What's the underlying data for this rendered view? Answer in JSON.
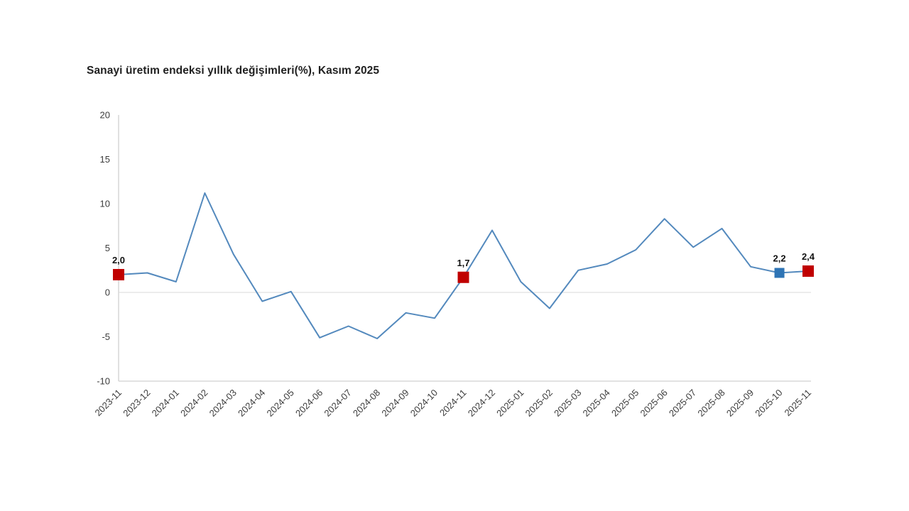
{
  "chart_data": {
    "type": "line",
    "title": "Sanayi üretim endeksi yıllık değişimleri(%), Kasım 2025",
    "x": [
      "2023-11",
      "2023-12",
      "2024-01",
      "2024-02",
      "2024-03",
      "2024-04",
      "2024-05",
      "2024-06",
      "2024-07",
      "2024-08",
      "2024-09",
      "2024-10",
      "2024-11",
      "2024-12",
      "2025-01",
      "2025-02",
      "2025-03",
      "2025-04",
      "2025-05",
      "2025-06",
      "2025-07",
      "2025-08",
      "2025-09",
      "2025-10",
      "2025-11"
    ],
    "values": [
      2.0,
      2.2,
      1.2,
      11.2,
      4.3,
      -1.0,
      0.1,
      -5.1,
      -3.8,
      -5.2,
      -2.3,
      -2.9,
      1.7,
      7.0,
      1.2,
      -1.8,
      2.5,
      3.2,
      4.8,
      8.3,
      5.1,
      7.2,
      2.9,
      2.2,
      2.4
    ],
    "highlighted_points": [
      {
        "index": 0,
        "x": "2023-11",
        "label": "2,0",
        "color": "#c00000",
        "size": 16
      },
      {
        "index": 12,
        "x": "2024-11",
        "label": "1,7",
        "color": "#c00000",
        "size": 16
      },
      {
        "index": 23,
        "x": "2025-10",
        "label": "2,2",
        "color": "#2e74b5",
        "size": 14
      },
      {
        "index": 24,
        "x": "2025-11",
        "label": "2,4",
        "color": "#c00000",
        "size": 16
      }
    ],
    "y_ticks": [
      20,
      15,
      10,
      5,
      0,
      -5,
      -10
    ],
    "ylim": [
      -10,
      20
    ],
    "line_color": "#5389bd",
    "axis_color": "#d0d0d0",
    "zero_line_color": "#d9d9d9",
    "grid": "zero-line-only",
    "legend": "none",
    "xlabel": "",
    "ylabel": ""
  }
}
